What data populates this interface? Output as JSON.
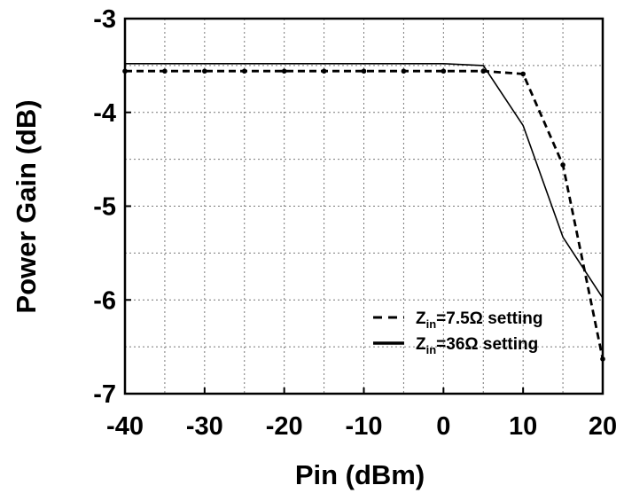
{
  "chart_data": {
    "type": "line",
    "title": "",
    "xlabel": "Pin (dBm)",
    "ylabel": "Power Gain (dB)",
    "xlim": [
      -40,
      20
    ],
    "ylim": [
      -7,
      -3
    ],
    "xticks": [
      -40,
      -30,
      -20,
      -10,
      0,
      10,
      20
    ],
    "yticks": [
      -3,
      -4,
      -5,
      -6,
      -7
    ],
    "grid": true,
    "legend_position": "bottom-right",
    "series": [
      {
        "name": "Zin=7.5Ω setting",
        "legend": {
          "prefix": "Z",
          "subscript": "in",
          "suffix": "=7.5Ω setting"
        },
        "line_style": "dashed",
        "markers": true,
        "color": "#000000",
        "x": [
          -40,
          -35,
          -30,
          -25,
          -20,
          -15,
          -10,
          -5,
          0,
          5,
          10,
          15,
          20
        ],
        "y": [
          -3.56,
          -3.56,
          -3.56,
          -3.56,
          -3.56,
          -3.56,
          -3.56,
          -3.56,
          -3.56,
          -3.56,
          -3.59,
          -4.56,
          -6.63
        ]
      },
      {
        "name": "Zin=36Ω setting",
        "legend": {
          "prefix": "Z",
          "subscript": "in",
          "suffix": "=36Ω setting"
        },
        "line_style": "solid",
        "markers": false,
        "color": "#000000",
        "x": [
          -40,
          -30,
          -20,
          -10,
          0,
          5,
          10,
          15,
          20
        ],
        "y": [
          -3.48,
          -3.48,
          -3.48,
          -3.48,
          -3.48,
          -3.5,
          -4.14,
          -5.33,
          -5.98
        ]
      }
    ]
  }
}
